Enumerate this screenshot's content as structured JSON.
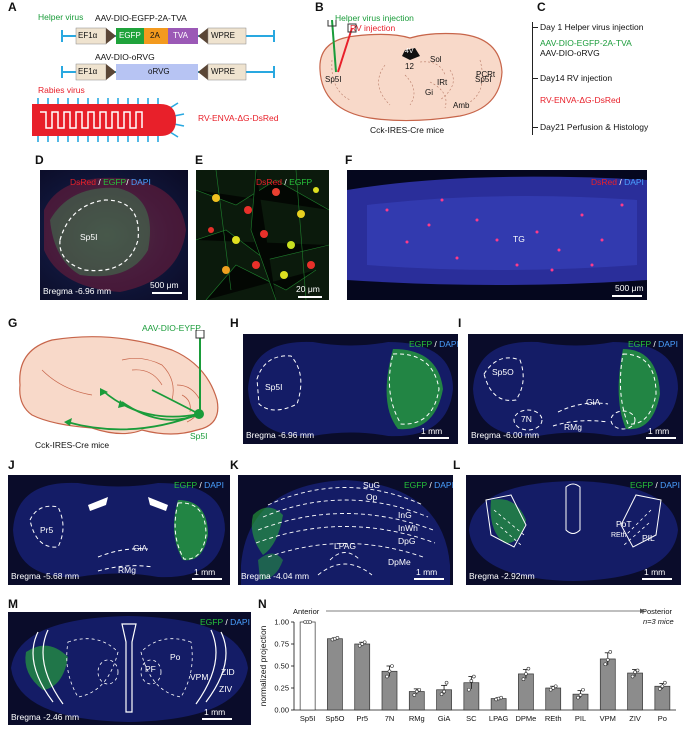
{
  "panels": {
    "A": "A",
    "B": "B",
    "C": "C",
    "D": "D",
    "E": "E",
    "F": "F",
    "G": "G",
    "H": "H",
    "I": "I",
    "J": "J",
    "K": "K",
    "L": "L",
    "M": "M",
    "N": "N"
  },
  "panelA": {
    "helper_label": "Helper virus",
    "construct1_name": "AAV-DIO-EGFP-2A-TVA",
    "construct1_parts": [
      "EF1α",
      "EGFP",
      "2A",
      "TVA",
      "WPRE"
    ],
    "construct2_name": "AAV-DIO-oRVG",
    "construct2_parts": [
      "EF1α",
      "oRVG",
      "WPRE"
    ],
    "rabies_label": "Rabies virus",
    "rabies_name": "RV-ENVA-ΔG-DsRed",
    "colors": {
      "helper": "#1a9c3a",
      "rabies": "#e8202a",
      "egfp": "#1fa33b",
      "twoA": "#f39a1e",
      "tva": "#9b59b6",
      "orvg": "#b7c4f3",
      "wpre": "#efe3cf",
      "ef1a": "#efe3cf"
    }
  },
  "panelB": {
    "helper_injection": "Helper virus injection",
    "rv_injection": "RV injection",
    "regions": [
      "4V",
      "12",
      "Sol",
      "PCRt",
      "IRt",
      "Gi",
      "Amb",
      "Sp5I",
      "Sp5I"
    ],
    "caption": "Cck-IRES-Cre mice"
  },
  "panelC": {
    "t1": "Day 1 Helper virus injection",
    "t1a": "AAV-DIO-EGFP-2A-TVA",
    "t1b": "AAV-DIO-oRVG",
    "t2": "Day14 RV injection",
    "t2a": "RV-ENVA-ΔG-DsRed",
    "t3": "Day21 Perfusion & Histology"
  },
  "panelD": {
    "stain1": "DsRed",
    "stain2": "EGFP",
    "stain3": "DAPI",
    "region": "Sp5I",
    "bregma": "Bregma -6.96 mm",
    "scale": "500 μm"
  },
  "panelE": {
    "stain1": "DsRed",
    "stain2": "EGFP",
    "scale": "20 μm"
  },
  "panelF": {
    "stain1": "DsRed",
    "stain2": "DAPI",
    "region": "TG",
    "scale": "500 μm"
  },
  "panelG": {
    "virus": "AAV-DIO-EYFP",
    "site": "Sp5I",
    "caption": "Cck-IRES-Cre mice"
  },
  "panelH": {
    "stain1": "EGFP",
    "stain2": "DAPI",
    "region": "Sp5I",
    "bregma": "Bregma -6.96 mm",
    "scale": "1 mm"
  },
  "panelI": {
    "stain1": "EGFP",
    "stain2": "DAPI",
    "regions": [
      "Sp5O",
      "7N",
      "GiA",
      "RMg"
    ],
    "bregma": "Bregma -6.00 mm",
    "scale": "1 mm"
  },
  "panelJ": {
    "stain1": "EGFP",
    "stain2": "DAPI",
    "regions": [
      "Pr5",
      "GiA",
      "RMg"
    ],
    "bregma": "Bregma -5.68 mm",
    "scale": "1 mm"
  },
  "panelK": {
    "stain1": "EGFP",
    "stain2": "DAPI",
    "regions": [
      "SuG",
      "Op",
      "InG",
      "InWh",
      "DpG",
      "LPAG",
      "DpMe"
    ],
    "bregma": "Bregma -4.04 mm",
    "scale": "1 mm"
  },
  "panelL": {
    "stain1": "EGFP",
    "stain2": "DAPI",
    "regions": [
      "PoT",
      "REth",
      "PIL"
    ],
    "bregma": "Bregma -2.92mm",
    "scale": "1 mm"
  },
  "panelM": {
    "stain1": "EGFP",
    "stain2": "DAPI",
    "regions": [
      "PF",
      "Po",
      "VPM",
      "ZID",
      "ZIV"
    ],
    "bregma": "Bregma -2.46 mm",
    "scale": "1 mm"
  },
  "chart_data": {
    "type": "bar",
    "ylabel": "normalized projection",
    "ylim": [
      0,
      1.0
    ],
    "yticks": [
      "0.00",
      "0.25",
      "0.50",
      "0.75",
      "1.00"
    ],
    "anterior": "Anterior",
    "posterior": "Posterior",
    "n_note": "n=3 mice",
    "categories": [
      "Sp5I",
      "Sp5O",
      "Pr5",
      "7N",
      "RMg",
      "GiA",
      "SC",
      "LPAG",
      "DPMe",
      "REth",
      "PIL",
      "VPM",
      "ZIV",
      "Po"
    ],
    "values": [
      1.0,
      0.81,
      0.75,
      0.44,
      0.21,
      0.23,
      0.31,
      0.13,
      0.41,
      0.25,
      0.18,
      0.58,
      0.42,
      0.27
    ],
    "errors": [
      0.0,
      0.01,
      0.02,
      0.06,
      0.03,
      0.05,
      0.07,
      0.01,
      0.05,
      0.02,
      0.04,
      0.07,
      0.04,
      0.03
    ],
    "points": [
      [
        1.0,
        1.0,
        1.0
      ],
      [
        0.8,
        0.81,
        0.82
      ],
      [
        0.73,
        0.75,
        0.77
      ],
      [
        0.38,
        0.44,
        0.5
      ],
      [
        0.17,
        0.21,
        0.23
      ],
      [
        0.18,
        0.21,
        0.31
      ],
      [
        0.23,
        0.33,
        0.38
      ],
      [
        0.12,
        0.13,
        0.14
      ],
      [
        0.35,
        0.41,
        0.47
      ],
      [
        0.23,
        0.25,
        0.27
      ],
      [
        0.14,
        0.17,
        0.23
      ],
      [
        0.52,
        0.57,
        0.66
      ],
      [
        0.38,
        0.43,
        0.45
      ],
      [
        0.24,
        0.27,
        0.31
      ]
    ],
    "bar_color_first": "#ffffff",
    "bar_color": "#8c8c8c"
  }
}
